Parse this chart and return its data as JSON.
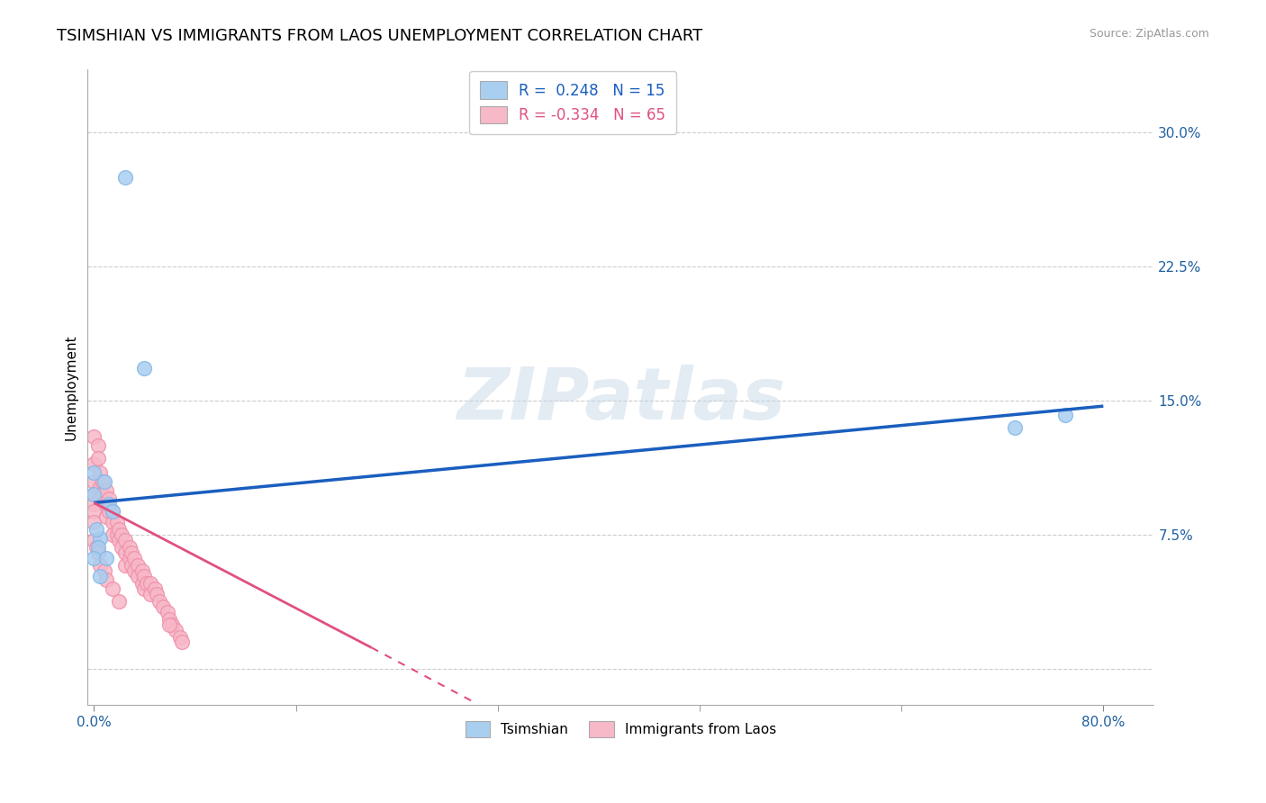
{
  "title": "TSIMSHIAN VS IMMIGRANTS FROM LAOS UNEMPLOYMENT CORRELATION CHART",
  "source": "Source: ZipAtlas.com",
  "ylabel": "Unemployment",
  "yticks": [
    0.0,
    0.075,
    0.15,
    0.225,
    0.3
  ],
  "ytick_labels": [
    "",
    "7.5%",
    "15.0%",
    "22.5%",
    "30.0%"
  ],
  "xlim": [
    -0.005,
    0.84
  ],
  "ylim": [
    -0.02,
    0.335
  ],
  "blue_R": 0.248,
  "blue_N": 15,
  "pink_R": -0.334,
  "pink_N": 65,
  "blue_color": "#A8CEF0",
  "pink_color": "#F7B8C8",
  "blue_edge_color": "#85B8E8",
  "pink_edge_color": "#F090A8",
  "blue_line_color": "#1A5EBF",
  "pink_line_color": "#E05080",
  "background_color": "#FFFFFF",
  "watermark": "ZIPatlas",
  "tsimshian_x": [
    0.025,
    0.04,
    0.0,
    0.0,
    0.008,
    0.012,
    0.015,
    0.005,
    0.003,
    0.0,
    0.01,
    0.005,
    0.73,
    0.77,
    0.002
  ],
  "tsimshian_y": [
    0.275,
    0.168,
    0.11,
    0.098,
    0.105,
    0.092,
    0.088,
    0.073,
    0.068,
    0.062,
    0.062,
    0.052,
    0.135,
    0.142,
    0.078
  ],
  "laos_x": [
    0.0,
    0.0,
    0.0,
    0.0,
    0.0,
    0.0,
    0.0,
    0.003,
    0.003,
    0.005,
    0.005,
    0.005,
    0.007,
    0.007,
    0.01,
    0.01,
    0.01,
    0.012,
    0.012,
    0.015,
    0.015,
    0.015,
    0.018,
    0.018,
    0.02,
    0.02,
    0.022,
    0.022,
    0.025,
    0.025,
    0.025,
    0.028,
    0.028,
    0.03,
    0.03,
    0.032,
    0.032,
    0.035,
    0.035,
    0.038,
    0.038,
    0.04,
    0.04,
    0.042,
    0.045,
    0.045,
    0.048,
    0.05,
    0.052,
    0.055,
    0.058,
    0.06,
    0.062,
    0.065,
    0.068,
    0.07,
    0.0,
    0.002,
    0.003,
    0.005,
    0.008,
    0.01,
    0.015,
    0.02,
    0.06
  ],
  "laos_y": [
    0.13,
    0.115,
    0.105,
    0.098,
    0.092,
    0.088,
    0.082,
    0.125,
    0.118,
    0.11,
    0.102,
    0.095,
    0.105,
    0.098,
    0.1,
    0.092,
    0.085,
    0.095,
    0.088,
    0.088,
    0.082,
    0.075,
    0.082,
    0.075,
    0.078,
    0.072,
    0.075,
    0.068,
    0.072,
    0.065,
    0.058,
    0.068,
    0.062,
    0.065,
    0.058,
    0.062,
    0.055,
    0.058,
    0.052,
    0.055,
    0.048,
    0.052,
    0.045,
    0.048,
    0.048,
    0.042,
    0.045,
    0.042,
    0.038,
    0.035,
    0.032,
    0.028,
    0.025,
    0.022,
    0.018,
    0.015,
    0.072,
    0.068,
    0.065,
    0.058,
    0.055,
    0.05,
    0.045,
    0.038,
    0.025
  ],
  "blue_line_x0": 0.0,
  "blue_line_x1": 0.8,
  "blue_line_y0": 0.093,
  "blue_line_y1": 0.147,
  "pink_line_solid_x0": 0.0,
  "pink_line_solid_x1": 0.22,
  "pink_line_solid_y0": 0.093,
  "pink_line_solid_y1": 0.012,
  "pink_line_dash_x0": 0.22,
  "pink_line_dash_x1": 0.3,
  "pink_line_dash_y0": 0.012,
  "pink_line_dash_y1": -0.018,
  "title_fontsize": 13,
  "label_fontsize": 11,
  "tick_fontsize": 11,
  "source_fontsize": 9
}
